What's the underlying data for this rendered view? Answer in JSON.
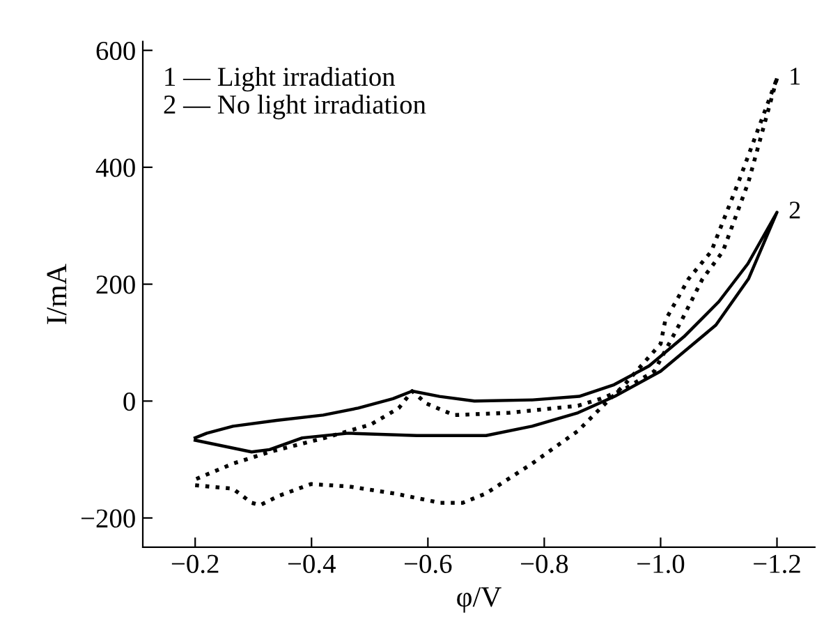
{
  "chart_data": {
    "type": "line",
    "xlabel": "φ/V",
    "ylabel": "I/mA",
    "xlim": [
      -0.11,
      -1.265
    ],
    "ylim": [
      -250,
      615
    ],
    "xticks": [
      {
        "value": -0.2,
        "label": "−0.2"
      },
      {
        "value": -0.4,
        "label": "−0.4"
      },
      {
        "value": -0.6,
        "label": "−0.6"
      },
      {
        "value": -0.8,
        "label": "−0.8"
      },
      {
        "value": -1.0,
        "label": "−1.0"
      },
      {
        "value": -1.2,
        "label": "−1.2"
      }
    ],
    "yticks": [
      {
        "value": -200,
        "label": "−200"
      },
      0,
      200,
      400,
      600
    ],
    "grid": false,
    "legend": false,
    "marker": "none",
    "annotations": [
      "1 — Light irradiation",
      "2 — No light irradiation"
    ],
    "series": [
      {
        "name": "1",
        "color": "#000000",
        "line_style": "dotted",
        "x": [
          -0.2,
          -0.265,
          -0.297,
          -0.312,
          -0.344,
          -0.399,
          -0.463,
          -0.542,
          -0.621,
          -0.66,
          -0.7,
          -0.779,
          -0.858,
          -0.897,
          -0.937,
          -1.0,
          -1.008,
          -1.048,
          -1.087,
          -1.134,
          -1.2
        ],
        "values": [
          -144,
          -150,
          -174,
          -178,
          -162,
          -142,
          -146,
          -158,
          -174,
          -174,
          -158,
          -107,
          -51,
          -12,
          27,
          98,
          138,
          209,
          256,
          375,
          552
        ]
      },
      {
        "color": "#000000",
        "line_style": "dotted",
        "x": [
          -1.2,
          -1.151,
          -1.107,
          -1.072,
          -1.036,
          -0.989,
          -0.937,
          -0.897,
          -0.858,
          -0.74,
          -0.645,
          -0.597,
          -0.573,
          -0.55,
          -0.502,
          -0.423,
          -0.328,
          -0.265,
          -0.2
        ],
        "values": [
          552,
          375,
          256,
          209,
          138,
          51,
          20,
          4,
          -8,
          -20,
          -24,
          -4,
          17,
          -12,
          -40,
          -63,
          -87,
          -107,
          -134
        ]
      },
      {
        "name": "2",
        "color": "#000000",
        "line_style": "solid",
        "x": [
          -0.2,
          -0.297,
          -0.328,
          -0.384,
          -0.463,
          -0.581,
          -0.7,
          -0.779,
          -0.858,
          -0.921,
          -1.0,
          -1.095,
          -1.151,
          -1.2,
          -1.15,
          -1.1,
          -1.04,
          -0.98,
          -0.92,
          -0.86,
          -0.78,
          -0.68,
          -0.62,
          -0.573,
          -0.54,
          -0.48,
          -0.42,
          -0.34,
          -0.265,
          -0.22,
          -0.2
        ],
        "values": [
          -67,
          -87,
          -83,
          -63,
          -55,
          -59,
          -59,
          -43,
          -20,
          8,
          51,
          130,
          209,
          323,
          235,
          170,
          110,
          60,
          28,
          8,
          2,
          0,
          8,
          17,
          4,
          -12,
          -24,
          -33,
          -43,
          -55,
          -63
        ]
      }
    ]
  }
}
